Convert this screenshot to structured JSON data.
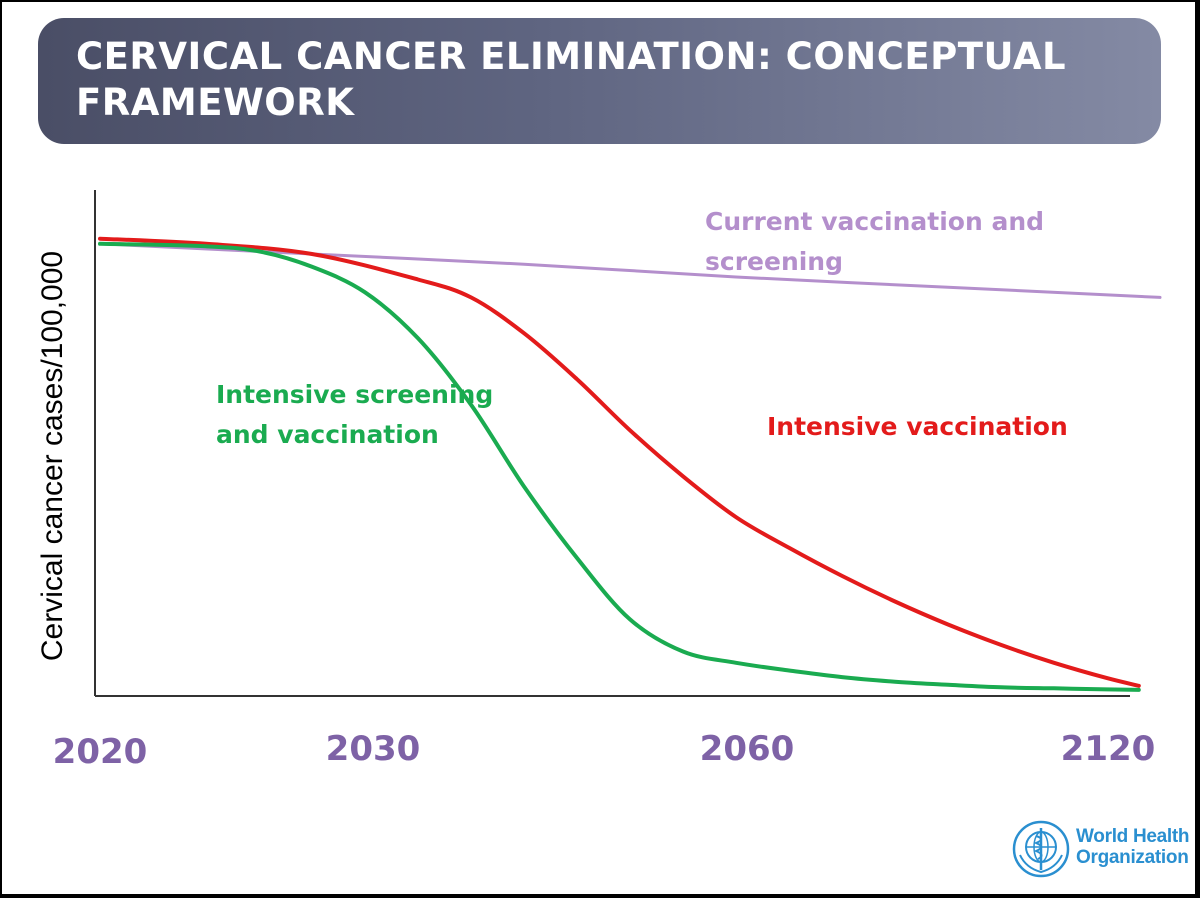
{
  "slide": {
    "title": "CERVICAL CANCER ELIMINATION: CONCEPTUAL FRAMEWORK"
  },
  "chart_data": {
    "type": "line",
    "title": "CERVICAL CANCER ELIMINATION: CONCEPTUAL FRAMEWORK",
    "xlabel": "",
    "ylabel": "Cervical cancer cases/100,000",
    "x_tick_labels": [
      "2020",
      "2030",
      "2060",
      "2120"
    ],
    "x_note": "conceptual, non-linear timeline; x values are relative positions 0-100",
    "xlim": [
      0,
      100
    ],
    "ylim": [
      0,
      100
    ],
    "grid": false,
    "colors": {
      "current": "#b48fcc",
      "vaccination": "#e31b1b",
      "screening": "#1aab50",
      "tick": "#7e62a6",
      "axis": "#333333"
    },
    "series": [
      {
        "name": "Current vaccination and screening",
        "key": "current",
        "x": [
          0,
          20,
          40,
          60,
          80,
          100
        ],
        "y": [
          88.5,
          86.5,
          84.5,
          82,
          80,
          78
        ]
      },
      {
        "name": "Intensive vaccination",
        "key": "vaccination",
        "x": [
          0,
          10,
          20,
          30,
          35,
          40,
          45,
          50,
          55,
          60,
          65,
          70,
          75,
          80,
          85,
          90,
          95,
          98
        ],
        "y": [
          89.5,
          88.5,
          86.5,
          81.5,
          78,
          71,
          62,
          52,
          43,
          35,
          29,
          23.5,
          18.5,
          14,
          10,
          6.5,
          3.5,
          2
        ]
      },
      {
        "name": "Intensive screening and vaccination",
        "key": "screening",
        "x": [
          0,
          10,
          15,
          20,
          25,
          30,
          35,
          40,
          45,
          50,
          55,
          60,
          65,
          70,
          75,
          80,
          85,
          90,
          95,
          98
        ],
        "y": [
          88.5,
          88,
          87,
          84,
          79,
          70,
          57,
          41,
          27,
          15,
          8.7,
          6.5,
          5,
          3.7,
          2.8,
          2.2,
          1.7,
          1.5,
          1.3,
          1.2
        ]
      }
    ],
    "annotations": {
      "current": [
        "Current vaccination and",
        "screening"
      ],
      "vaccination": [
        "Intensive vaccination"
      ],
      "screening": [
        "Intensive screening",
        "and vaccination"
      ]
    }
  },
  "logo": {
    "line1": "World Health",
    "line2": "Organization",
    "icon": "who-emblem-icon"
  }
}
